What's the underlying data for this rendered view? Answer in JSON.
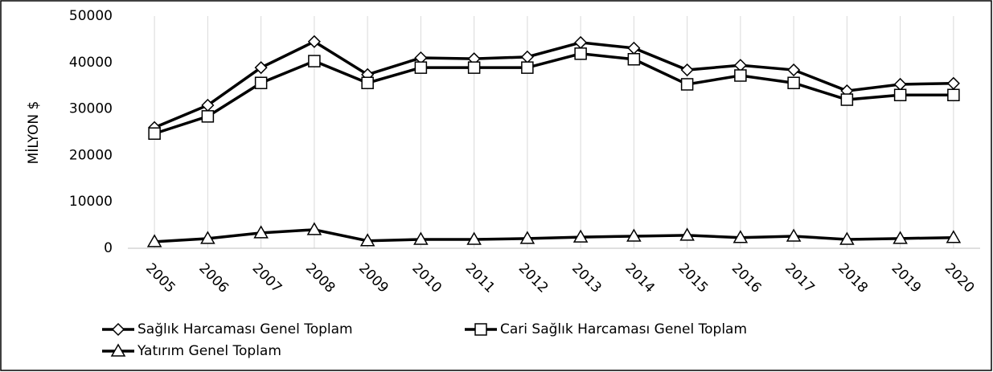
{
  "chart_data": {
    "type": "line",
    "y_label": "MİLYON $",
    "categories": [
      "2005",
      "2006",
      "2007",
      "2008",
      "2009",
      "2010",
      "2011",
      "2012",
      "2013",
      "2014",
      "2015",
      "2016",
      "2017",
      "2018",
      "2019",
      "2020"
    ],
    "series": [
      {
        "name": "Sağlık Harcaması Genel Toplam",
        "color": "#000000",
        "marker": "diamond",
        "values": [
          26000,
          30800,
          38900,
          44500,
          37400,
          41000,
          40800,
          41200,
          44300,
          43100,
          38400,
          39400,
          38400,
          33900,
          35300,
          35500
        ]
      },
      {
        "name": "Cari Sağlık Harcaması Genel Toplam",
        "color": "#000000",
        "marker": "square",
        "values": [
          24700,
          28400,
          35600,
          40300,
          35600,
          38900,
          38900,
          38900,
          41900,
          40700,
          35300,
          37200,
          35600,
          32000,
          33000,
          33000
        ]
      },
      {
        "name": "Yatırım Genel Toplam",
        "color": "#000000",
        "marker": "triangle",
        "values": [
          1400,
          2100,
          3300,
          4000,
          1600,
          1900,
          1900,
          2100,
          2400,
          2600,
          2800,
          2300,
          2600,
          1900,
          2100,
          2300
        ]
      }
    ],
    "ylim": [
      0,
      50000
    ],
    "yticks": [
      0,
      10000,
      20000,
      30000,
      40000,
      50000
    ],
    "grid": true,
    "legend": "bottom"
  }
}
